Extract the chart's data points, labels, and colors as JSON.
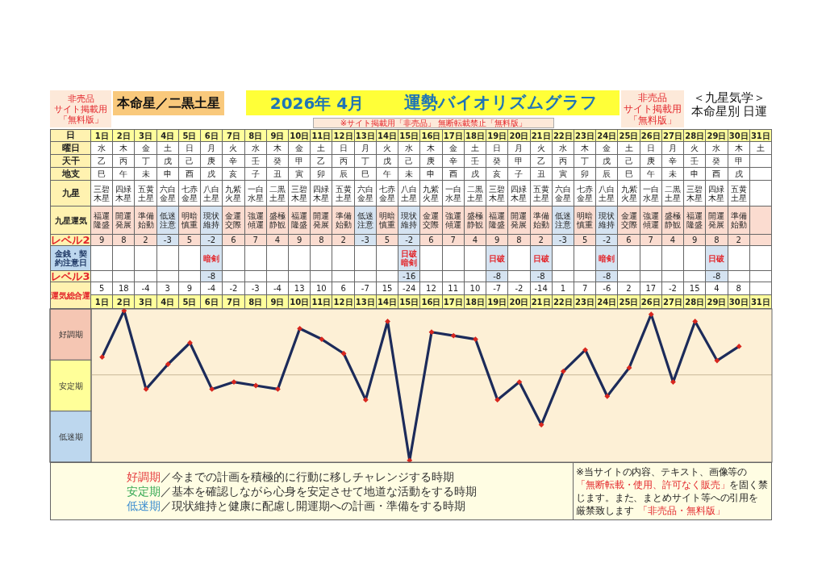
{
  "chart_data": [
    {
      "type": "other",
      "title": "2026年 4月",
      "subtitle": "運勢バイオリズムグラフ",
      "annotations": [
        "非売品",
        "サイト掲載用",
        "「無料版」",
        "本命星／二黒土星",
        "※サイト掲載用「非売品」 無断転載禁止「無料版」",
        "非売品",
        "サイト掲載用",
        "「無料版」",
        "＜九星気学＞",
        "本命星別 日運"
      ],
      "y_categories": [
        "曜日",
        "天干",
        "地支",
        "九星",
        "九星運気",
        "レベル2",
        "金銭・契約注意日",
        "レベル3"
      ],
      "cell_labels": [
        [
          "水",
          "木",
          "金",
          "土",
          "日",
          "月",
          "火",
          "水",
          "木",
          "金",
          "土",
          "日",
          "月",
          "火",
          "水",
          "木",
          "金",
          "土",
          "日",
          "月",
          "火",
          "水",
          "木",
          "金",
          "土",
          "日",
          "月",
          "火",
          "水",
          "木",
          "土"
        ],
        [
          "乙",
          "丙",
          "丁",
          "戊",
          "己",
          "庚",
          "辛",
          "壬",
          "癸",
          "甲",
          "乙",
          "丙",
          "丁",
          "戊",
          "己",
          "庚",
          "辛",
          "壬",
          "癸",
          "甲",
          "乙",
          "丙",
          "丁",
          "戊",
          "己",
          "庚",
          "辛",
          "壬",
          "癸",
          "甲",
          null
        ],
        [
          "巳",
          "午",
          "未",
          "申",
          "酉",
          "戌",
          "亥",
          "子",
          "丑",
          "寅",
          "卯",
          "辰",
          "巳",
          "午",
          "未",
          "申",
          "酉",
          "戌",
          "亥",
          "子",
          "丑",
          "寅",
          "卯",
          "辰",
          "巳",
          "午",
          "未",
          "申",
          "酉",
          "戌",
          null
        ],
        [
          "三碧木星",
          "四緑木星",
          "五黄土星",
          "六白金星",
          "七赤金星",
          "八白土星",
          "九紫火星",
          "一白水星",
          "二黒土星",
          "三碧木星",
          "四緑木星",
          "五黄土星",
          "六白金星",
          "七赤金星",
          "八白土星",
          "九紫火星",
          "一白水星",
          "二黒土星",
          "三碧木星",
          "四緑木星",
          "五黄土星",
          "六白金星",
          "七赤金星",
          "八白土星",
          "九紫火星",
          "一白水星",
          "二黒土星",
          "三碧木星",
          "四緑木星",
          "五黄土星",
          null
        ],
        [
          "福運隆盛",
          "開運発展",
          "準備始動",
          "低迷注意",
          "明暗慎重",
          "現状維持",
          "金運交際",
          "強運傾運",
          "盛極静観",
          "福運隆盛",
          "開運発展",
          "準備始動",
          "低迷注意",
          "明暗慎重",
          "現状維持",
          "金運交際",
          "強運傾運",
          "盛極静観",
          "福運隆盛",
          "開運発展",
          "準備始動",
          "低迷注意",
          "明暗慎重",
          "現状維持",
          "金運交際",
          "強運傾運",
          "盛極静観",
          "福運隆盛",
          "開運発展",
          "準備始動",
          null
        ],
        [
          "9",
          "8",
          "2",
          "-3",
          "5",
          "-2",
          "6",
          "7",
          "4",
          "9",
          "8",
          "2",
          "-3",
          "5",
          "-2",
          "6",
          "7",
          "4",
          "9",
          "8",
          "2",
          "-3",
          "5",
          "-2",
          "6",
          "7",
          "4",
          "9",
          "8",
          "2",
          null
        ],
        [
          null,
          null,
          null,
          null,
          null,
          "暗剣",
          null,
          null,
          null,
          null,
          null,
          null,
          null,
          null,
          "日破暗剣",
          null,
          null,
          null,
          "日破",
          null,
          "日破",
          null,
          null,
          "暗剣",
          null,
          null,
          null,
          null,
          "日破",
          null,
          null
        ],
        [
          null,
          null,
          null,
          null,
          null,
          "-8",
          null,
          null,
          null,
          null,
          null,
          null,
          null,
          null,
          "-16",
          null,
          null,
          null,
          "-8",
          null,
          "-8",
          null,
          null,
          "-8",
          null,
          null,
          null,
          null,
          "-8",
          null,
          null
        ]
      ]
    },
    {
      "type": "line",
      "xlabel": "日",
      "ylabel": "運気総合運",
      "categories": [
        "1日",
        "2日",
        "3日",
        "4日",
        "5日",
        "6日",
        "7日",
        "8日",
        "9日",
        "10日",
        "11日",
        "12日",
        "13日",
        "14日",
        "15日",
        "16日",
        "17日",
        "18日",
        "19日",
        "20日",
        "21日",
        "22日",
        "23日",
        "24日",
        "25日",
        "26日",
        "27日",
        "28日",
        "29日",
        "30日",
        "31日"
      ],
      "values": [
        5,
        18,
        -4,
        3,
        9,
        -4,
        -2,
        -3,
        -4,
        13,
        10,
        6,
        -7,
        15,
        -24,
        12,
        11,
        10,
        -7,
        -2,
        -14,
        1,
        7,
        -6,
        2,
        17,
        -2,
        15,
        4,
        8,
        null
      ],
      "color": "#1c2b5a",
      "colors": [
        "#d7261e",
        "#d7261e",
        "#d7261e",
        "#d7261e",
        "#d7261e",
        "#d7261e",
        "#d7261e",
        "#d7261e",
        "#d7261e",
        "#d7261e",
        "#d7261e",
        "#d7261e",
        "#d7261e",
        "#d7261e",
        "#d7261e",
        "#d7261e",
        "#d7261e",
        "#d7261e",
        "#d7261e",
        "#d7261e",
        "#d7261e",
        "#d7261e",
        "#d7261e",
        "#d7261e",
        "#d7261e",
        "#d7261e",
        "#d7261e",
        "#d7261e",
        "#d7261e",
        "#d7261e",
        null
      ],
      "marker": "diamond",
      "line_style": "solid",
      "data_labels": true,
      "tick_labels": "x",
      "ylim": [
        -24.5,
        18.5
      ],
      "ref_lines": [
        {
          "axis": "y",
          "value": 0,
          "color": "#c9b99a"
        }
      ],
      "annotations": [
        "好調期",
        "安定期",
        "低迷期",
        "好調期",
        "／今までの計画を積極的に行動に移しチャレンジする時期",
        "安定期",
        "／基本を確認しながら心身を安定させて地道な活動をする時期",
        "低迷期",
        "／現状維持と健康に配慮し開運期への計画・準備をする時期",
        "※当サイトの内容、テキスト、画像等の",
        "「無断転載・使用、許可なく販売」",
        "を固く禁",
        "じます。また、まとめサイト等への引用を",
        "厳禁致します",
        "「非売品・無料版」"
      ]
    }
  ]
}
